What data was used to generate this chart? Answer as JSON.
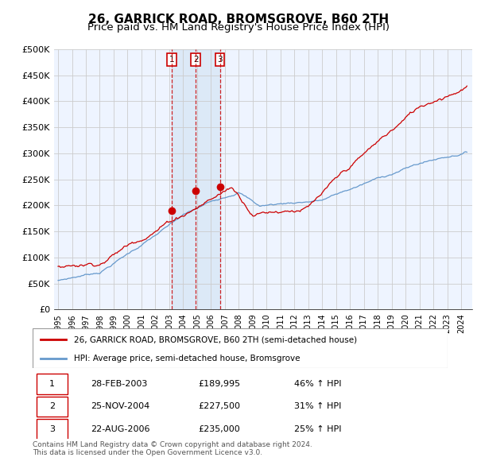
{
  "title": "26, GARRICK ROAD, BROMSGROVE, B60 2TH",
  "subtitle": "Price paid vs. HM Land Registry's House Price Index (HPI)",
  "title_fontsize": 11,
  "subtitle_fontsize": 9.5,
  "ylabel_ticks": [
    "£0",
    "£50K",
    "£100K",
    "£150K",
    "£200K",
    "£250K",
    "£300K",
    "£350K",
    "£400K",
    "£450K",
    "£500K"
  ],
  "ytick_values": [
    0,
    50000,
    100000,
    150000,
    200000,
    250000,
    300000,
    350000,
    400000,
    450000,
    500000
  ],
  "ylim": [
    0,
    500000
  ],
  "xlim_start": 1994.7,
  "xlim_end": 2024.8,
  "red_line_color": "#cc0000",
  "blue_line_color": "#6699cc",
  "grid_color": "#cccccc",
  "bg_color": "#ddeeff",
  "plot_bg_color": "#eef4ff",
  "sale_dates": [
    2003.16,
    2004.9,
    2006.64
  ],
  "sale_prices": [
    189995,
    227500,
    235000
  ],
  "sale_labels": [
    "1",
    "2",
    "3"
  ],
  "vline_color": "#cc0000",
  "legend_entries": [
    "26, GARRICK ROAD, BROMSGROVE, B60 2TH (semi-detached house)",
    "HPI: Average price, semi-detached house, Bromsgrove"
  ],
  "table_rows": [
    [
      "1",
      "28-FEB-2003",
      "£189,995",
      "46% ↑ HPI"
    ],
    [
      "2",
      "25-NOV-2004",
      "£227,500",
      "31% ↑ HPI"
    ],
    [
      "3",
      "22-AUG-2006",
      "£235,000",
      "25% ↑ HPI"
    ]
  ],
  "footnote": "Contains HM Land Registry data © Crown copyright and database right 2024.\nThis data is licensed under the Open Government Licence v3.0.",
  "xtick_years": [
    1995,
    1996,
    1997,
    1998,
    1999,
    2000,
    2001,
    2002,
    2003,
    2004,
    2005,
    2006,
    2007,
    2008,
    2009,
    2010,
    2011,
    2012,
    2013,
    2014,
    2015,
    2016,
    2017,
    2018,
    2019,
    2020,
    2021,
    2022,
    2023,
    2024
  ]
}
